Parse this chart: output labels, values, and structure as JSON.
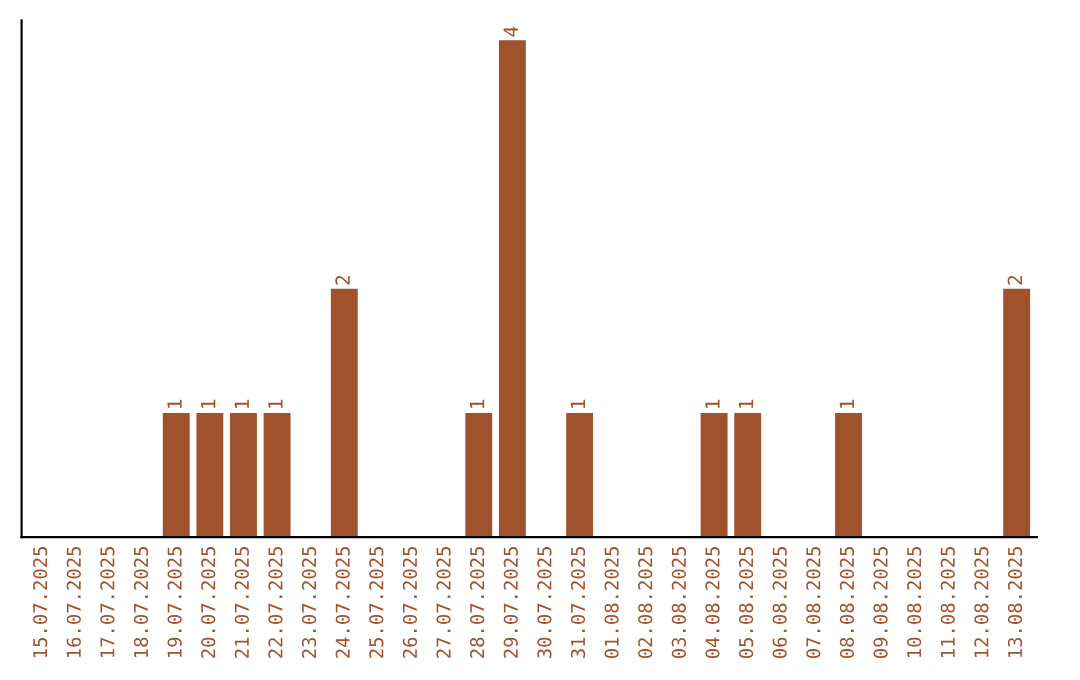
{
  "chart_data": {
    "type": "bar",
    "categories": [
      "15.07.2025",
      "16.07.2025",
      "17.07.2025",
      "18.07.2025",
      "19.07.2025",
      "20.07.2025",
      "21.07.2025",
      "22.07.2025",
      "23.07.2025",
      "24.07.2025",
      "25.07.2025",
      "26.07.2025",
      "27.07.2025",
      "28.07.2025",
      "29.07.2025",
      "30.07.2025",
      "31.07.2025",
      "01.08.2025",
      "02.08.2025",
      "03.08.2025",
      "04.08.2025",
      "05.08.2025",
      "06.08.2025",
      "07.08.2025",
      "08.08.2025",
      "09.08.2025",
      "10.08.2025",
      "11.08.2025",
      "12.08.2025",
      "13.08.2025"
    ],
    "values": [
      0,
      0,
      0,
      0,
      1,
      1,
      1,
      1,
      0,
      2,
      0,
      0,
      0,
      1,
      4,
      0,
      1,
      0,
      0,
      0,
      1,
      1,
      0,
      0,
      1,
      0,
      0,
      0,
      0,
      2
    ],
    "value_labels": [
      null,
      null,
      null,
      null,
      "1",
      "1",
      "1",
      "1",
      null,
      "2",
      null,
      null,
      null,
      "1",
      "4",
      null,
      "1",
      null,
      null,
      null,
      "1",
      "1",
      null,
      null,
      "1",
      null,
      null,
      null,
      null,
      "2"
    ],
    "color": "#a0522d",
    "tick_labels": "x",
    "grid": false
  }
}
